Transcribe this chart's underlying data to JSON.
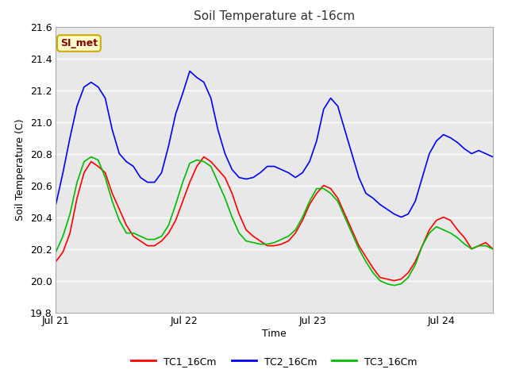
{
  "title": "Soil Temperature at -16cm",
  "xlabel": "Time",
  "ylabel": "Soil Temperature (C)",
  "ylim": [
    19.8,
    21.6
  ],
  "yticks": [
    19.8,
    20.0,
    20.2,
    20.4,
    20.6,
    20.8,
    21.0,
    21.2,
    21.4,
    21.6
  ],
  "xtick_positions": [
    0,
    1,
    2,
    3
  ],
  "xtick_labels": [
    "Jul 21",
    "Jul 22",
    "Jul 23",
    "Jul 24"
  ],
  "xlim": [
    0,
    3.4
  ],
  "legend_labels": [
    "TC1_16Cm",
    "TC2_16Cm",
    "TC3_16Cm"
  ],
  "line_colors": [
    "#ff0000",
    "#0000ff",
    "#00bb00"
  ],
  "line_width": 1.2,
  "fig_bg_color": "#ffffff",
  "ax_bg_color": "#e8e8e8",
  "annotation_text": "SI_met",
  "annotation_bg": "#ffffcc",
  "annotation_border": "#ccaa00",
  "annotation_text_color": "#880000",
  "tc1": [
    20.12,
    20.18,
    20.3,
    20.52,
    20.68,
    20.75,
    20.72,
    20.68,
    20.55,
    20.45,
    20.35,
    20.28,
    20.25,
    20.22,
    20.22,
    20.25,
    20.3,
    20.38,
    20.5,
    20.62,
    20.72,
    20.78,
    20.75,
    20.7,
    20.65,
    20.55,
    20.42,
    20.32,
    20.28,
    20.25,
    20.22,
    20.22,
    20.23,
    20.25,
    20.3,
    20.38,
    20.48,
    20.55,
    20.6,
    20.58,
    20.52,
    20.42,
    20.32,
    20.22,
    20.15,
    20.08,
    20.02,
    20.01,
    20.0,
    20.01,
    20.05,
    20.12,
    20.22,
    20.32,
    20.38,
    20.4,
    20.38,
    20.32,
    20.27,
    20.2,
    20.22,
    20.24,
    20.2
  ],
  "tc2": [
    20.48,
    20.68,
    20.9,
    21.1,
    21.22,
    21.25,
    21.22,
    21.15,
    20.95,
    20.8,
    20.75,
    20.72,
    20.65,
    20.62,
    20.62,
    20.68,
    20.85,
    21.05,
    21.18,
    21.32,
    21.28,
    21.25,
    21.15,
    20.95,
    20.8,
    20.7,
    20.65,
    20.64,
    20.65,
    20.68,
    20.72,
    20.72,
    20.7,
    20.68,
    20.65,
    20.68,
    20.75,
    20.88,
    21.08,
    21.15,
    21.1,
    20.95,
    20.8,
    20.65,
    20.55,
    20.52,
    20.48,
    20.45,
    20.42,
    20.4,
    20.42,
    20.5,
    20.65,
    20.8,
    20.88,
    20.92,
    20.9,
    20.87,
    20.83,
    20.8,
    20.82,
    20.8,
    20.78
  ],
  "tc3": [
    20.18,
    20.28,
    20.42,
    20.62,
    20.75,
    20.78,
    20.76,
    20.65,
    20.5,
    20.38,
    20.3,
    20.3,
    20.28,
    20.26,
    20.26,
    20.28,
    20.35,
    20.48,
    20.62,
    20.74,
    20.76,
    20.75,
    20.72,
    20.62,
    20.52,
    20.4,
    20.3,
    20.25,
    20.24,
    20.23,
    20.23,
    20.24,
    20.26,
    20.28,
    20.32,
    20.4,
    20.5,
    20.58,
    20.58,
    20.55,
    20.5,
    20.4,
    20.3,
    20.2,
    20.12,
    20.05,
    20.0,
    19.98,
    19.97,
    19.98,
    20.02,
    20.1,
    20.22,
    20.3,
    20.34,
    20.32,
    20.3,
    20.27,
    20.23,
    20.2,
    20.22,
    20.22,
    20.2
  ]
}
